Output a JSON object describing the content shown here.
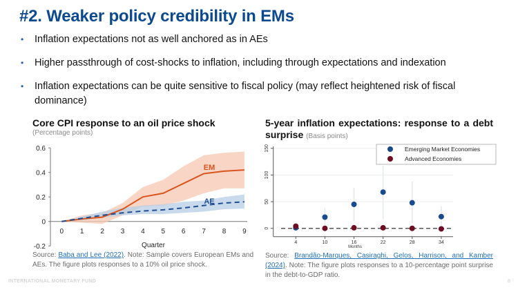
{
  "slide": {
    "title": "#2. Weaker policy credibility in EMs",
    "bullets": [
      "Inflation expectations not as well anchored as in AEs",
      "Higher passthrough of cost-shocks to inflation, including through expectations and indexation",
      "Inflation expectations can be quite sensitive to fiscal policy (may reflect heightened risk of fiscal dominance)"
    ],
    "bullet_symbol": "•",
    "footer_org": "INTERNATIONAL MONETARY FUND",
    "page_number": "8"
  },
  "left": {
    "title": "Core CPI response to an oil price shock",
    "subtitle": "(Percentage points)",
    "source_prefix": "Source: ",
    "source_link": "Baba and Lee (2022)",
    "source_note": ". Note: Sample covers European EMs and AEs. The figure plots responses to a 10% oil price shock."
  },
  "right": {
    "title": "5-year inflation expectations: response to a debt surprise",
    "subtitle": "(Basis points)",
    "source_prefix": "Source: ",
    "source_link": "Brandão-Marques, Casiraghi, Gelos, Harrison, and Kamber (2024)",
    "source_note": ". Note: The figure plots responses to a 10-percentage point surprise in the debt-to-GDP ratio."
  },
  "chart_data": [
    {
      "type": "line",
      "title": "Core CPI response to an oil price shock",
      "ylabel": "Percentage points",
      "xlabel": "Quarter",
      "x": [
        0,
        1,
        2,
        3,
        4,
        5,
        6,
        7,
        8,
        9
      ],
      "xticks": [
        "0",
        "1",
        "2",
        "3",
        "4",
        "5",
        "6",
        "7",
        "8",
        "9"
      ],
      "yticks": [
        "0.6",
        "0.4",
        "0.2",
        "0",
        "-0.2"
      ],
      "ytick_values": [
        0.6,
        0.4,
        0.2,
        0,
        -0.2
      ],
      "ylim": [
        -0.2,
        0.6
      ],
      "xlim": [
        0,
        9
      ],
      "grid": false,
      "series": [
        {
          "name": "EM",
          "color": "#d9541e",
          "style": "solid",
          "values": [
            0,
            0.02,
            0.035,
            0.1,
            0.2,
            0.23,
            0.31,
            0.39,
            0.41,
            0.42
          ],
          "upper": [
            0,
            0.05,
            0.07,
            0.15,
            0.28,
            0.34,
            0.45,
            0.54,
            0.56,
            0.57
          ],
          "lower": [
            0,
            -0.01,
            -0.02,
            0.05,
            0.12,
            0.13,
            0.17,
            0.23,
            0.27,
            0.27
          ],
          "band_color": "#f6c7b0"
        },
        {
          "name": "AE",
          "color": "#1f4f91",
          "style": "dashed",
          "values": [
            0,
            0.025,
            0.05,
            0.07,
            0.085,
            0.095,
            0.11,
            0.13,
            0.15,
            0.16
          ],
          "upper": [
            0,
            0.04,
            0.08,
            0.11,
            0.13,
            0.14,
            0.16,
            0.17,
            0.2,
            0.22
          ],
          "lower": [
            0,
            0.01,
            0.03,
            0.05,
            0.06,
            0.06,
            0.07,
            0.08,
            0.1,
            0.105
          ],
          "band_color": "#b7cde6"
        }
      ]
    },
    {
      "type": "scatter",
      "title": "5-year inflation expectations: response to a debt surprise",
      "ylabel": "Basis points",
      "xlabel": "Months",
      "x": [
        4,
        10,
        16,
        22,
        28,
        34
      ],
      "xticks": [
        "4",
        "10",
        "16",
        "22",
        "28",
        "34"
      ],
      "yticks": [
        "150",
        "100",
        "50",
        "0"
      ],
      "ytick_values": [
        150,
        100,
        50,
        0
      ],
      "ylim": [
        -15,
        150
      ],
      "grid": true,
      "legend": "top-right",
      "series": [
        {
          "name": "Emerging Market Economies",
          "color": "#1a4a8e",
          "values": [
            1,
            21,
            45,
            68,
            48,
            22
          ],
          "upper": [
            3,
            38,
            76,
            118,
            88,
            41
          ],
          "lower": [
            -3,
            5,
            14,
            18,
            10,
            5
          ]
        },
        {
          "name": "Advanced Economies",
          "color": "#6e0d22",
          "values": [
            4,
            0,
            1,
            1,
            0,
            -1
          ]
        }
      ]
    }
  ]
}
